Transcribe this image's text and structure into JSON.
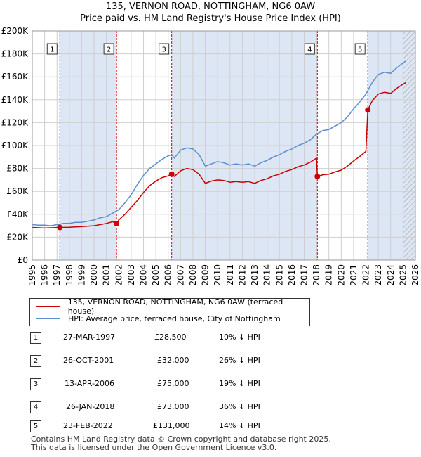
{
  "title_line1": "135, VERNON ROAD, NOTTINGHAM, NG6 0AW",
  "title_line2": "Price paid vs. HM Land Registry's House Price Index (HPI)",
  "legend": {
    "sold": "135, VERNON ROAD, NOTTINGHAM, NG6 0AW (terraced house)",
    "hpi": "HPI: Average price, terraced house, City of Nottingham"
  },
  "colors": {
    "sold": "#cc0000",
    "hpi": "#5b8fd0",
    "shade": "#dde6f4",
    "vline": "#cc0000"
  },
  "sales": [
    {
      "num": "1",
      "date": "27-MAR-1997",
      "price": "£28,500",
      "hpi": "10% ↓ HPI"
    },
    {
      "num": "2",
      "date": "26-OCT-2001",
      "price": "£32,000",
      "hpi": "26% ↓ HPI"
    },
    {
      "num": "3",
      "date": "13-APR-2006",
      "price": "£75,000",
      "hpi": "19% ↓ HPI"
    },
    {
      "num": "4",
      "date": "26-JAN-2018",
      "price": "£73,000",
      "hpi": "36% ↓ HPI"
    },
    {
      "num": "5",
      "date": "23-FEB-2022",
      "price": "£131,000",
      "hpi": "14% ↓ HPI"
    }
  ],
  "footer": {
    "line1": "Contains HM Land Registry data © Crown copyright and database right 2025.",
    "line2": "This data is licensed under the Open Government Licence v3.0."
  },
  "chart_data": {
    "type": "line",
    "xlim": [
      1995,
      2026
    ],
    "ylim": [
      0,
      200000
    ],
    "y_ticks": [
      0,
      20000,
      40000,
      60000,
      80000,
      100000,
      120000,
      140000,
      160000,
      180000,
      200000
    ],
    "y_tick_labels": [
      "£0",
      "£20K",
      "£40K",
      "£60K",
      "£80K",
      "£100K",
      "£120K",
      "£140K",
      "£160K",
      "£180K",
      "£200K"
    ],
    "x_ticks": [
      1995,
      1996,
      1997,
      1998,
      1999,
      2000,
      2001,
      2002,
      2003,
      2004,
      2005,
      2006,
      2007,
      2008,
      2009,
      2010,
      2011,
      2012,
      2013,
      2014,
      2015,
      2016,
      2017,
      2018,
      2019,
      2020,
      2021,
      2022,
      2023,
      2024,
      2025,
      2026
    ],
    "x_tick_labels": [
      "1995",
      "1996",
      "1997",
      "1998",
      "1999",
      "2000",
      "2001",
      "2002",
      "2003",
      "2004",
      "2005",
      "2006",
      "2007",
      "2008",
      "2009",
      "2010",
      "2011",
      "2012",
      "2013",
      "2014",
      "2015",
      "2016",
      "2017",
      "2018",
      "2019",
      "2020",
      "2021",
      "2022",
      "2023",
      "2024",
      "2025",
      "2026"
    ],
    "shaded_ranges": [
      [
        1997.23,
        2001.82
      ],
      [
        2006.28,
        2018.07
      ],
      [
        2022.15,
        2026
      ]
    ],
    "hatched_range": [
      2025.0,
      2026
    ],
    "series": [
      {
        "name": "HPI: Average price, terraced house, City of Nottingham",
        "color": "#5b8fd0",
        "points": [
          [
            1995.0,
            31000
          ],
          [
            1995.5,
            30500
          ],
          [
            1996.0,
            30500
          ],
          [
            1996.5,
            30000
          ],
          [
            1997.0,
            31000
          ],
          [
            1997.25,
            31500
          ],
          [
            1997.5,
            32000
          ],
          [
            1998.0,
            32000
          ],
          [
            1998.5,
            33000
          ],
          [
            1999.0,
            33000
          ],
          [
            1999.5,
            34000
          ],
          [
            2000.0,
            35000
          ],
          [
            2000.5,
            37000
          ],
          [
            2001.0,
            38000
          ],
          [
            2001.5,
            41000
          ],
          [
            2001.83,
            43000
          ],
          [
            2002.0,
            44000
          ],
          [
            2002.5,
            50000
          ],
          [
            2003.0,
            57000
          ],
          [
            2003.5,
            66000
          ],
          [
            2004.0,
            74000
          ],
          [
            2004.5,
            80000
          ],
          [
            2005.0,
            84000
          ],
          [
            2005.5,
            88000
          ],
          [
            2006.0,
            91000
          ],
          [
            2006.3,
            92000
          ],
          [
            2006.5,
            89000
          ],
          [
            2007.0,
            96000
          ],
          [
            2007.5,
            98000
          ],
          [
            2008.0,
            97000
          ],
          [
            2008.5,
            92000
          ],
          [
            2009.0,
            82000
          ],
          [
            2009.5,
            84000
          ],
          [
            2010.0,
            86000
          ],
          [
            2010.5,
            85000
          ],
          [
            2011.0,
            83000
          ],
          [
            2011.5,
            84000
          ],
          [
            2012.0,
            83000
          ],
          [
            2012.5,
            84000
          ],
          [
            2013.0,
            82000
          ],
          [
            2013.5,
            85000
          ],
          [
            2014.0,
            87000
          ],
          [
            2014.5,
            90000
          ],
          [
            2015.0,
            92000
          ],
          [
            2015.5,
            95000
          ],
          [
            2016.0,
            97000
          ],
          [
            2016.5,
            100000
          ],
          [
            2017.0,
            102000
          ],
          [
            2017.5,
            105000
          ],
          [
            2018.0,
            110000
          ],
          [
            2018.5,
            113000
          ],
          [
            2019.0,
            114000
          ],
          [
            2019.5,
            117000
          ],
          [
            2020.0,
            120000
          ],
          [
            2020.5,
            125000
          ],
          [
            2021.0,
            132000
          ],
          [
            2021.5,
            138000
          ],
          [
            2022.0,
            145000
          ],
          [
            2022.5,
            155000
          ],
          [
            2023.0,
            162000
          ],
          [
            2023.5,
            164000
          ],
          [
            2024.0,
            163000
          ],
          [
            2024.5,
            168000
          ],
          [
            2025.0,
            172000
          ],
          [
            2025.25,
            174000
          ]
        ]
      },
      {
        "name": "135, VERNON ROAD, NOTTINGHAM, NG6 0AW (terraced house)",
        "color": "#cc0000",
        "points": [
          [
            1995.0,
            28500
          ],
          [
            1996.0,
            28000
          ],
          [
            1997.23,
            28500
          ],
          [
            1998.0,
            28700
          ],
          [
            1999.0,
            29300
          ],
          [
            2000.0,
            30000
          ],
          [
            2001.0,
            32000
          ],
          [
            2001.5,
            33500
          ],
          [
            2001.82,
            32000
          ],
          [
            2002.0,
            35000
          ],
          [
            2002.5,
            40000
          ],
          [
            2003.0,
            46000
          ],
          [
            2003.5,
            52000
          ],
          [
            2004.0,
            59000
          ],
          [
            2004.5,
            65000
          ],
          [
            2005.0,
            69000
          ],
          [
            2005.5,
            72000
          ],
          [
            2006.0,
            73500
          ],
          [
            2006.28,
            75000
          ],
          [
            2006.5,
            73000
          ],
          [
            2007.0,
            78000
          ],
          [
            2007.5,
            80000
          ],
          [
            2008.0,
            79000
          ],
          [
            2008.5,
            75000
          ],
          [
            2009.0,
            67000
          ],
          [
            2009.5,
            69000
          ],
          [
            2010.0,
            70000
          ],
          [
            2010.5,
            69500
          ],
          [
            2011.0,
            68000
          ],
          [
            2011.5,
            68500
          ],
          [
            2012.0,
            68000
          ],
          [
            2012.5,
            68500
          ],
          [
            2013.0,
            67000
          ],
          [
            2013.5,
            69500
          ],
          [
            2014.0,
            71000
          ],
          [
            2014.5,
            73500
          ],
          [
            2015.0,
            75000
          ],
          [
            2015.5,
            77500
          ],
          [
            2016.0,
            79000
          ],
          [
            2016.5,
            81500
          ],
          [
            2017.0,
            83000
          ],
          [
            2017.5,
            85500
          ],
          [
            2018.0,
            89000
          ],
          [
            2018.07,
            73000
          ],
          [
            2018.5,
            74500
          ],
          [
            2019.0,
            75000
          ],
          [
            2019.5,
            77000
          ],
          [
            2020.0,
            78500
          ],
          [
            2020.5,
            82000
          ],
          [
            2021.0,
            86500
          ],
          [
            2021.5,
            90500
          ],
          [
            2022.0,
            95000
          ],
          [
            2022.15,
            131000
          ],
          [
            2022.5,
            139000
          ],
          [
            2023.0,
            145000
          ],
          [
            2023.5,
            146500
          ],
          [
            2024.0,
            145500
          ],
          [
            2024.5,
            150000
          ],
          [
            2025.0,
            153500
          ],
          [
            2025.25,
            155000
          ]
        ]
      }
    ],
    "sale_points": [
      {
        "label": "1",
        "x": 1997.23,
        "y": 28500
      },
      {
        "label": "2",
        "x": 2001.82,
        "y": 32000
      },
      {
        "label": "3",
        "x": 2006.28,
        "y": 75000
      },
      {
        "label": "4",
        "x": 2018.07,
        "y": 73000
      },
      {
        "label": "5",
        "x": 2022.15,
        "y": 131000
      }
    ]
  }
}
